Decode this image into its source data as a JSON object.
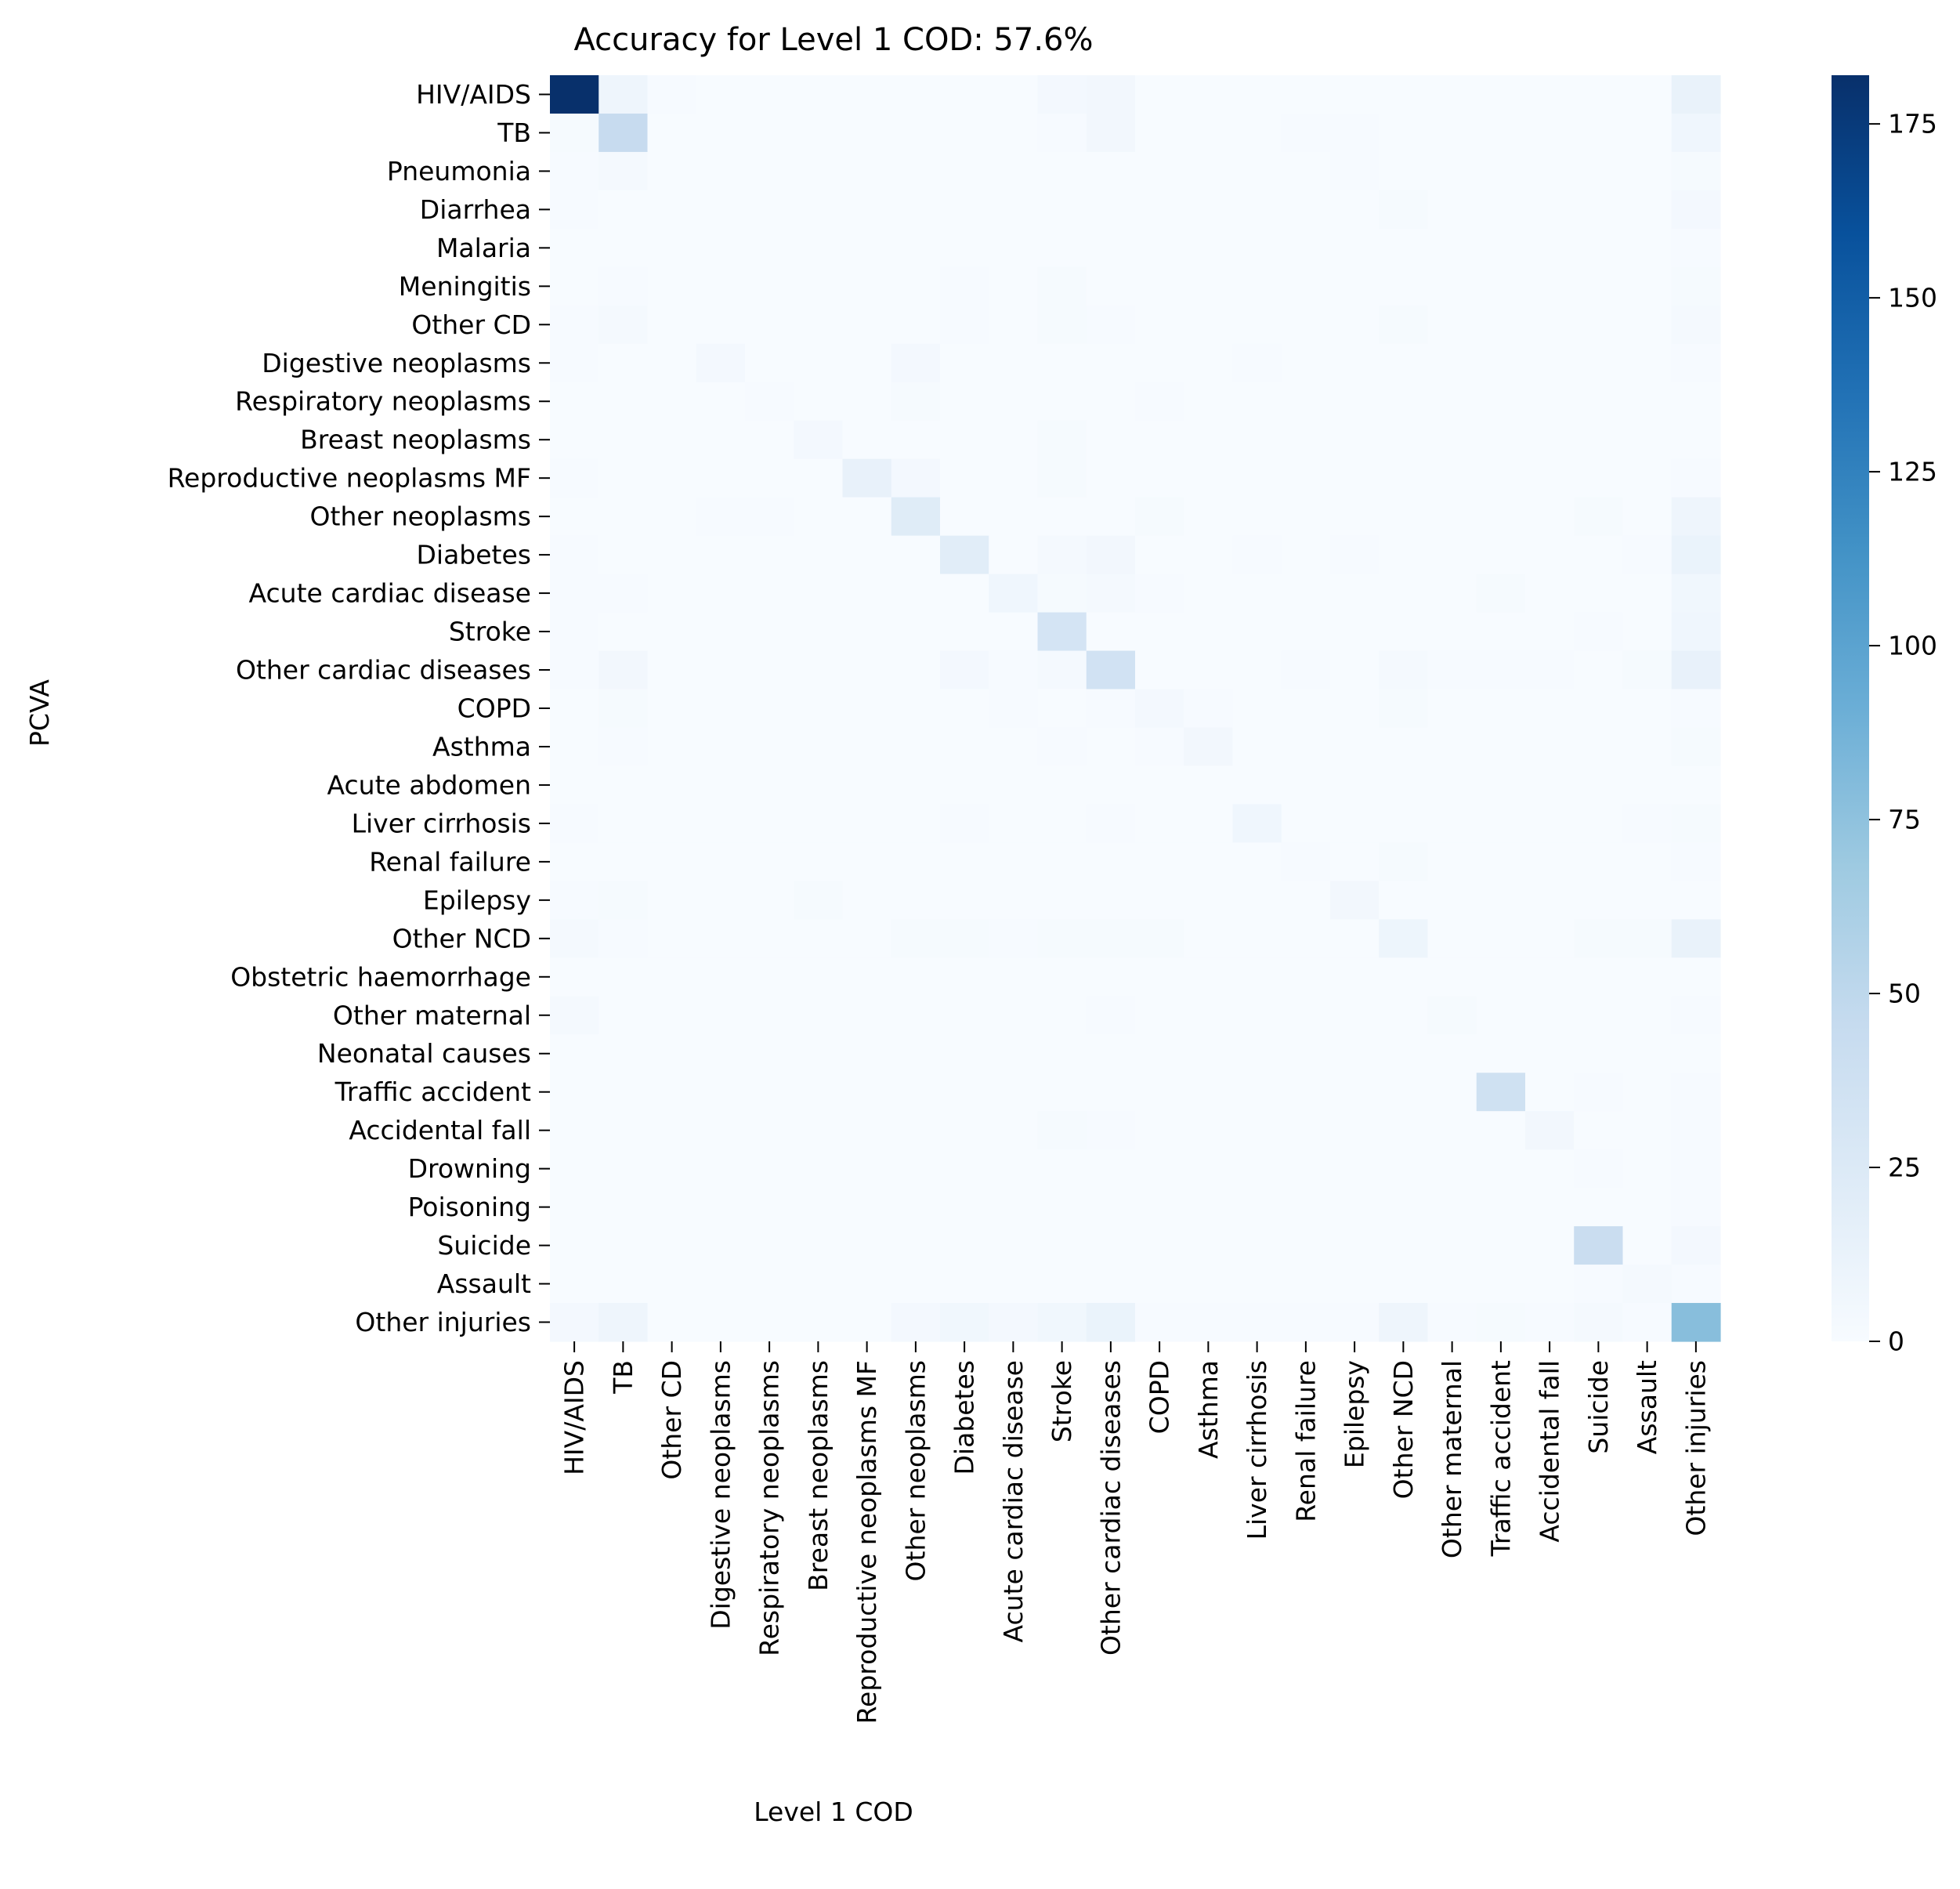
{
  "chart_data": {
    "type": "heatmap",
    "title": "Accuracy for Level 1 COD: 57.6%",
    "xlabel": "Level 1 COD",
    "ylabel": "PCVA",
    "colormap": "Blues",
    "colorbar": {
      "min": 0,
      "max": 182,
      "ticks": [
        0,
        25,
        50,
        75,
        100,
        125,
        150,
        175
      ]
    },
    "rows": [
      "HIV/AIDS",
      "TB",
      "Pneumonia",
      "Diarrhea",
      "Malaria",
      "Meningitis",
      "Other CD",
      "Digestive neoplasms",
      "Respiratory neoplasms",
      "Breast neoplasms",
      "Reproductive neoplasms MF",
      "Other neoplasms",
      "Diabetes",
      "Acute cardiac disease",
      "Stroke",
      "Other cardiac diseases",
      "COPD",
      "Asthma",
      "Acute abdomen",
      "Liver cirrhosis",
      "Renal failure",
      "Epilepsy",
      "Other NCD",
      "Obstetric haemorrhage",
      "Other maternal",
      "Neonatal causes",
      "Traffic accident",
      "Accidental fall",
      "Drowning",
      "Poisoning",
      "Suicide",
      "Assault",
      "Other injuries"
    ],
    "columns": [
      "HIV/AIDS",
      "TB",
      "Other CD",
      "Digestive neoplasms",
      "Respiratory neoplasms",
      "Breast neoplasms",
      "Reproductive neoplasms MF",
      "Other neoplasms",
      "Diabetes",
      "Acute cardiac disease",
      "Stroke",
      "Other cardiac diseases",
      "COPD",
      "Asthma",
      "Liver cirrhosis",
      "Renal failure",
      "Epilepsy",
      "Other NCD",
      "Other maternal",
      "Traffic accident",
      "Accidental fall",
      "Suicide",
      "Assault",
      "Other injuries"
    ],
    "values": [
      [
        182,
        8,
        1,
        0,
        0,
        0,
        0,
        0,
        0,
        0,
        4,
        5,
        0,
        0,
        0,
        0,
        0,
        0,
        0,
        0,
        0,
        0,
        0,
        13
      ],
      [
        2,
        45,
        0,
        0,
        0,
        0,
        0,
        0,
        0,
        0,
        1,
        5,
        0,
        0,
        0,
        1,
        1,
        0,
        0,
        0,
        0,
        0,
        0,
        7
      ],
      [
        1,
        3,
        0,
        0,
        0,
        0,
        0,
        0,
        0,
        0,
        0,
        0,
        0,
        0,
        0,
        0,
        1,
        0,
        0,
        0,
        0,
        0,
        0,
        2
      ],
      [
        1,
        0,
        0,
        0,
        0,
        0,
        0,
        0,
        0,
        0,
        0,
        0,
        0,
        0,
        0,
        0,
        0,
        2,
        0,
        0,
        0,
        0,
        0,
        4
      ],
      [
        0,
        0,
        0,
        0,
        0,
        0,
        0,
        0,
        0,
        0,
        0,
        0,
        0,
        0,
        0,
        0,
        0,
        0,
        0,
        0,
        0,
        0,
        0,
        1
      ],
      [
        0,
        1,
        0,
        0,
        0,
        0,
        0,
        0,
        1,
        0,
        2,
        0,
        0,
        0,
        0,
        0,
        0,
        0,
        0,
        0,
        0,
        0,
        0,
        2
      ],
      [
        1,
        3,
        0,
        0,
        0,
        0,
        0,
        0,
        1,
        0,
        2,
        1,
        0,
        0,
        0,
        0,
        0,
        2,
        0,
        0,
        0,
        0,
        0,
        3
      ],
      [
        1,
        0,
        0,
        4,
        0,
        0,
        0,
        4,
        0,
        0,
        0,
        0,
        0,
        0,
        1,
        0,
        0,
        0,
        0,
        0,
        0,
        0,
        0,
        1
      ],
      [
        0,
        0,
        0,
        0,
        1,
        0,
        0,
        2,
        0,
        0,
        0,
        0,
        1,
        0,
        0,
        0,
        0,
        0,
        0,
        0,
        0,
        0,
        0,
        0
      ],
      [
        0,
        0,
        0,
        0,
        0,
        4,
        0,
        0,
        0,
        0,
        2,
        0,
        0,
        0,
        0,
        0,
        0,
        0,
        0,
        0,
        0,
        0,
        0,
        0
      ],
      [
        1,
        0,
        0,
        0,
        0,
        0,
        14,
        4,
        0,
        0,
        2,
        0,
        0,
        0,
        0,
        0,
        0,
        0,
        0,
        0,
        0,
        0,
        0,
        1
      ],
      [
        0,
        0,
        0,
        1,
        1,
        0,
        0,
        22,
        0,
        0,
        0,
        0,
        2,
        0,
        0,
        0,
        0,
        0,
        0,
        0,
        0,
        2,
        0,
        8
      ],
      [
        1,
        0,
        0,
        0,
        0,
        0,
        0,
        0,
        20,
        0,
        3,
        5,
        0,
        0,
        1,
        0,
        1,
        0,
        0,
        0,
        0,
        0,
        1,
        12
      ],
      [
        1,
        1,
        0,
        0,
        0,
        0,
        0,
        0,
        0,
        7,
        2,
        3,
        1,
        0,
        0,
        0,
        0,
        0,
        0,
        2,
        0,
        0,
        0,
        6
      ],
      [
        1,
        0,
        0,
        0,
        0,
        0,
        0,
        0,
        0,
        0,
        32,
        0,
        0,
        0,
        0,
        0,
        0,
        0,
        0,
        0,
        0,
        1,
        0,
        7
      ],
      [
        1,
        5,
        0,
        0,
        0,
        0,
        0,
        0,
        4,
        1,
        3,
        35,
        0,
        0,
        0,
        1,
        0,
        3,
        1,
        1,
        1,
        0,
        2,
        14
      ],
      [
        0,
        2,
        0,
        0,
        0,
        0,
        0,
        0,
        0,
        1,
        0,
        1,
        4,
        1,
        0,
        0,
        0,
        2,
        0,
        0,
        0,
        0,
        0,
        1
      ],
      [
        0,
        1,
        0,
        0,
        0,
        0,
        0,
        0,
        0,
        0,
        1,
        0,
        1,
        5,
        0,
        0,
        0,
        0,
        0,
        0,
        0,
        0,
        0,
        2
      ],
      [
        0,
        0,
        0,
        0,
        0,
        0,
        0,
        0,
        0,
        0,
        0,
        0,
        0,
        0,
        0,
        0,
        0,
        0,
        0,
        0,
        0,
        0,
        0,
        0
      ],
      [
        1,
        0,
        0,
        0,
        0,
        0,
        0,
        0,
        1,
        0,
        0,
        1,
        0,
        0,
        7,
        0,
        0,
        0,
        0,
        0,
        0,
        0,
        1,
        2
      ],
      [
        0,
        0,
        0,
        0,
        0,
        0,
        0,
        0,
        0,
        0,
        0,
        0,
        0,
        0,
        0,
        1,
        0,
        2,
        0,
        0,
        0,
        0,
        0,
        1
      ],
      [
        1,
        2,
        0,
        0,
        0,
        2,
        0,
        0,
        0,
        0,
        0,
        0,
        0,
        0,
        0,
        0,
        5,
        0,
        0,
        0,
        0,
        0,
        0,
        0
      ],
      [
        3,
        1,
        0,
        0,
        0,
        0,
        0,
        2,
        2,
        1,
        2,
        2,
        2,
        0,
        0,
        0,
        0,
        9,
        0,
        0,
        0,
        2,
        2,
        13
      ],
      [
        0,
        0,
        0,
        0,
        0,
        0,
        0,
        0,
        0,
        0,
        0,
        0,
        0,
        0,
        0,
        0,
        0,
        0,
        0,
        0,
        0,
        0,
        0,
        0
      ],
      [
        3,
        0,
        0,
        0,
        0,
        0,
        0,
        0,
        0,
        0,
        0,
        1,
        0,
        0,
        0,
        0,
        0,
        0,
        2,
        0,
        0,
        0,
        0,
        1
      ],
      [
        0,
        0,
        0,
        0,
        0,
        0,
        0,
        0,
        0,
        0,
        0,
        0,
        0,
        0,
        0,
        0,
        0,
        0,
        0,
        0,
        0,
        0,
        0,
        0
      ],
      [
        0,
        0,
        0,
        0,
        0,
        0,
        0,
        0,
        0,
        0,
        0,
        0,
        0,
        0,
        0,
        0,
        0,
        0,
        0,
        37,
        0,
        1,
        0,
        1
      ],
      [
        0,
        0,
        0,
        0,
        0,
        0,
        0,
        0,
        0,
        0,
        2,
        1,
        0,
        0,
        0,
        0,
        0,
        0,
        0,
        0,
        5,
        0,
        0,
        1
      ],
      [
        0,
        0,
        0,
        0,
        0,
        0,
        0,
        0,
        0,
        0,
        0,
        0,
        0,
        0,
        0,
        0,
        0,
        0,
        0,
        0,
        0,
        1,
        0,
        1
      ],
      [
        0,
        0,
        0,
        0,
        0,
        0,
        0,
        0,
        0,
        0,
        0,
        0,
        0,
        0,
        0,
        0,
        0,
        0,
        0,
        0,
        0,
        0,
        0,
        1
      ],
      [
        0,
        0,
        0,
        0,
        0,
        0,
        0,
        0,
        0,
        0,
        0,
        0,
        0,
        0,
        0,
        0,
        0,
        0,
        0,
        0,
        0,
        42,
        0,
        4
      ],
      [
        0,
        0,
        0,
        0,
        0,
        0,
        0,
        0,
        0,
        0,
        0,
        0,
        0,
        0,
        0,
        0,
        0,
        0,
        0,
        0,
        0,
        1,
        3,
        1
      ],
      [
        4,
        8,
        0,
        0,
        0,
        0,
        0,
        4,
        6,
        4,
        6,
        12,
        1,
        1,
        1,
        1,
        1,
        8,
        1,
        2,
        1,
        3,
        1,
        78
      ]
    ]
  }
}
